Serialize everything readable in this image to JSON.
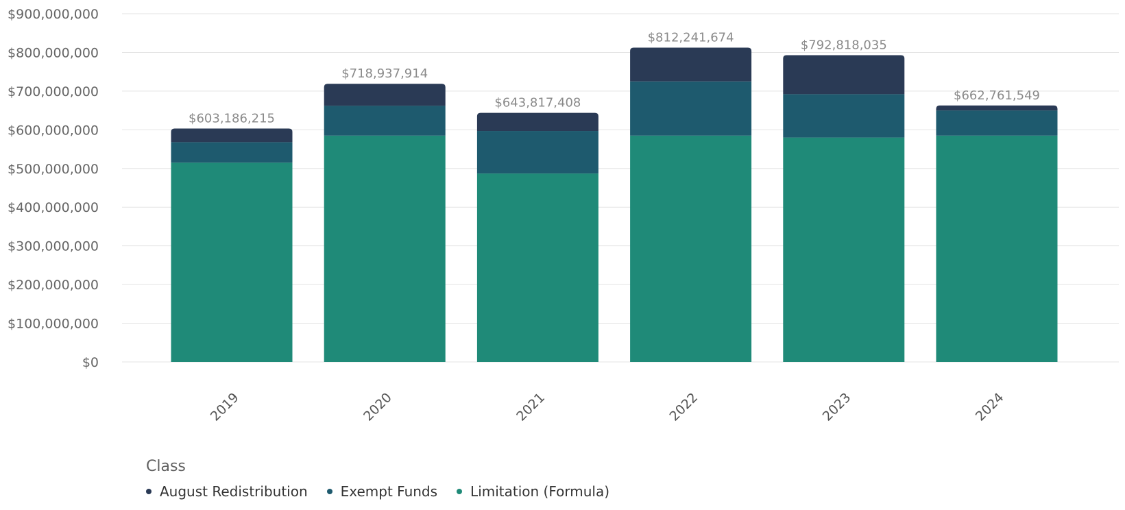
{
  "chart_data": {
    "type": "bar",
    "stacked": true,
    "categories": [
      "2019",
      "2020",
      "2021",
      "2022",
      "2023",
      "2024"
    ],
    "series": [
      {
        "name": "Limitation (Formula)",
        "color": "#1f8a78",
        "values": [
          515000000,
          585000000,
          487000000,
          585000000,
          580000000,
          585000000
        ]
      },
      {
        "name": "Exempt Funds",
        "color": "#1e5a6e",
        "values": [
          53000000,
          77000000,
          110000000,
          140000000,
          112000000,
          65000000
        ]
      },
      {
        "name": "August Redistribution",
        "color": "#2a3a55",
        "values": [
          35186215,
          56937914,
          46817408,
          87241674,
          100818035,
          12761549
        ]
      }
    ],
    "totals": [
      "$603,186,215",
      "$718,937,914",
      "$643,817,408",
      "$812,241,674",
      "$792,818,035",
      "$662,761,549"
    ],
    "y_ticks": [
      "$0",
      "$100,000,000",
      "$200,000,000",
      "$300,000,000",
      "$400,000,000",
      "$500,000,000",
      "$600,000,000",
      "$700,000,000",
      "$800,000,000",
      "$900,000,000"
    ],
    "ylim": [
      0,
      900000000
    ],
    "grid": true,
    "legend": {
      "title": "Class",
      "placement": "bottom-left",
      "items": [
        {
          "label": "August Redistribution",
          "color": "#2a3a55"
        },
        {
          "label": "Exempt Funds",
          "color": "#1e5a6e"
        },
        {
          "label": "Limitation (Formula)",
          "color": "#1f8a78"
        }
      ]
    }
  }
}
